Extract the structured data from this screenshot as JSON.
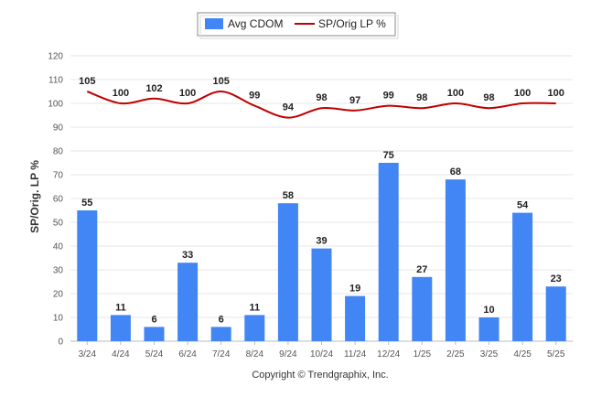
{
  "chart_data": {
    "type": "bar",
    "categories": [
      "3/24",
      "4/24",
      "5/24",
      "6/24",
      "7/24",
      "8/24",
      "9/24",
      "10/24",
      "11/24",
      "12/24",
      "1/25",
      "2/25",
      "3/25",
      "4/25",
      "5/25"
    ],
    "series": [
      {
        "name": "Avg CDOM",
        "type": "bar",
        "color": "#4285f4",
        "values": [
          55,
          11,
          6,
          33,
          6,
          11,
          58,
          39,
          19,
          75,
          27,
          68,
          10,
          54,
          23
        ]
      },
      {
        "name": "SP/Orig LP %",
        "type": "line",
        "color": "#c00000",
        "values": [
          105,
          100,
          102,
          100,
          105,
          99,
          94,
          98,
          97,
          99,
          98,
          100,
          98,
          100,
          100
        ]
      }
    ],
    "ylabel": "SP/Orig. LP %",
    "xlabel": "",
    "ylim": [
      0,
      120
    ],
    "yticks": [
      0,
      10,
      20,
      30,
      40,
      50,
      60,
      70,
      80,
      90,
      100,
      110,
      120
    ],
    "grid": true,
    "legend_position": "top-center"
  },
  "credit": "Copyright © Trendgraphix, Inc."
}
